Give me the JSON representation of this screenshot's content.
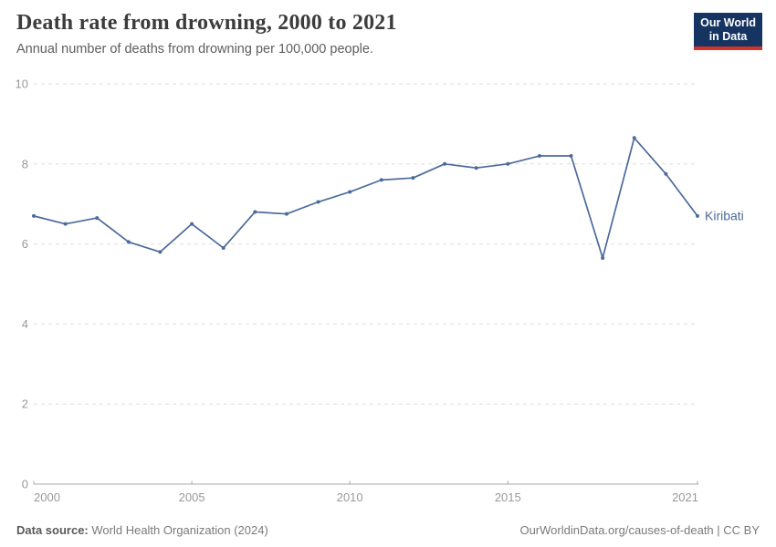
{
  "header": {
    "title": "Death rate from drowning, 2000 to 2021",
    "subtitle": "Annual number of deaths from drowning per 100,000 people.",
    "logo": {
      "line1": "Our World",
      "line2": "in Data"
    }
  },
  "chart_data": {
    "type": "line",
    "title": "Death rate from drowning, 2000 to 2021",
    "ylabel": "Annual deaths from drowning per 100,000 people",
    "x": [
      2000,
      2001,
      2002,
      2003,
      2004,
      2005,
      2006,
      2007,
      2008,
      2009,
      2010,
      2011,
      2012,
      2013,
      2014,
      2015,
      2016,
      2017,
      2018,
      2019,
      2020,
      2021
    ],
    "series": [
      {
        "name": "Kiribati",
        "color": "#4c6a9c",
        "values": [
          6.7,
          6.5,
          6.65,
          6.05,
          5.8,
          6.5,
          5.9,
          6.8,
          6.75,
          7.05,
          7.3,
          7.6,
          7.65,
          8.0,
          7.9,
          8.0,
          8.2,
          8.2,
          5.65,
          8.65,
          7.75,
          6.7
        ]
      }
    ],
    "ylim": [
      0,
      10
    ],
    "yticks": [
      0,
      2,
      4,
      6,
      8,
      10
    ],
    "xticks": [
      2000,
      2005,
      2010,
      2015,
      2021
    ],
    "grid": "horizontal-dashed",
    "legend": "end-of-line-label"
  },
  "colors": {
    "line": "#4c6a9c",
    "grid": "#dedede",
    "axis": "#a8a8a8",
    "tick_text": "#999999",
    "title_text": "#3c3c3c",
    "logo_bg": "#163461",
    "logo_bar": "#d0342c"
  },
  "footer": {
    "source_label": "Data source:",
    "source_value": "World Health Organization (2024)",
    "credit": "OurWorldinData.org/causes-of-death | CC BY"
  }
}
